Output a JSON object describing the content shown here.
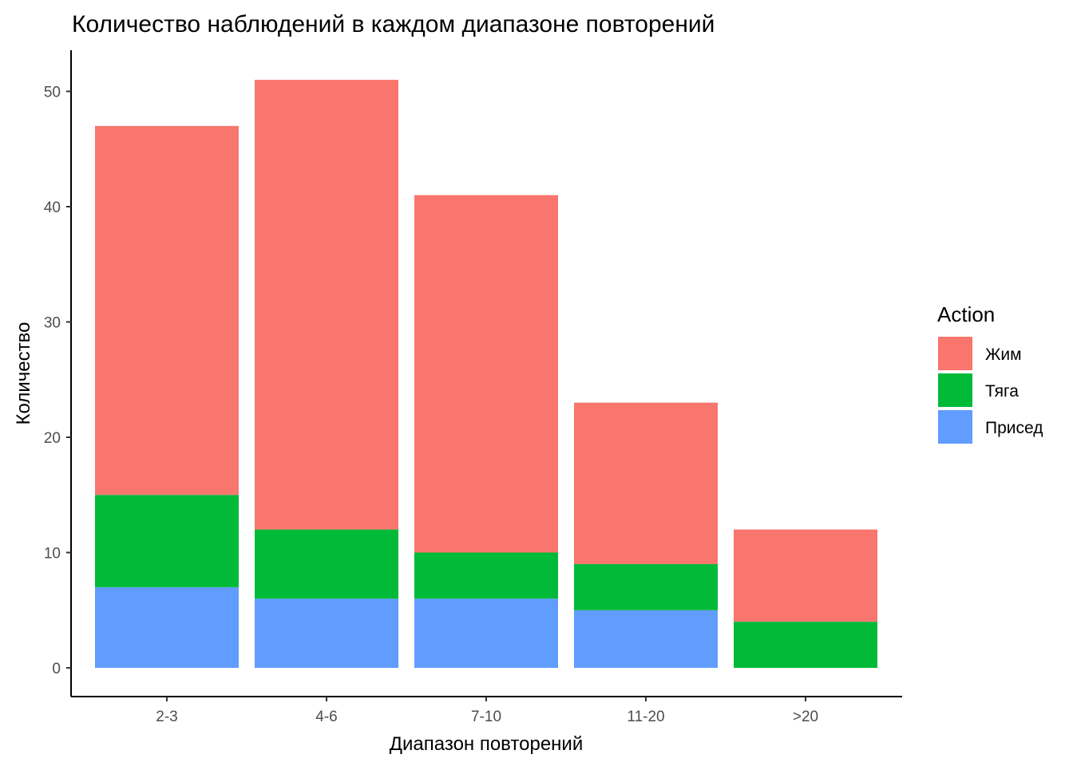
{
  "chart_data": {
    "type": "bar",
    "stacked": true,
    "title": "Количество наблюдений в каждом диапазоне повторений",
    "xlabel": "Диапазон повторений",
    "ylabel": "Количество",
    "categories": [
      "2-3",
      "4-6",
      "7-10",
      "11-20",
      ">20"
    ],
    "ylim": [
      0,
      53
    ],
    "yticks": [
      0,
      10,
      20,
      30,
      40,
      50
    ],
    "grid": false,
    "legend_title": "Action",
    "legend_position": "right",
    "series": [
      {
        "name": "Присед",
        "color": "#619CFF",
        "values": [
          7,
          6,
          6,
          5,
          0
        ]
      },
      {
        "name": "Тяга",
        "color": "#00BA38",
        "values": [
          8,
          6,
          4,
          4,
          4
        ]
      },
      {
        "name": "Жим",
        "color": "#F8766D",
        "values": [
          32,
          39,
          31,
          14,
          8
        ]
      }
    ],
    "legend_order": [
      "Жим",
      "Тяга",
      "Присед"
    ]
  }
}
